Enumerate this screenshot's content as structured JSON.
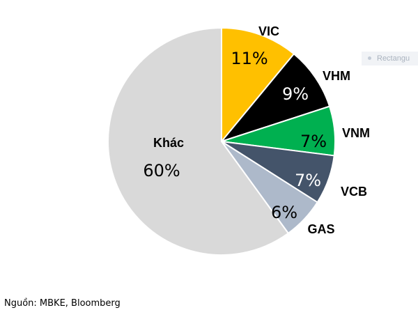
{
  "chart_data": {
    "type": "pie",
    "start_angle_deg": 0,
    "direction": "clockwise",
    "slices": [
      {
        "label": "VIC",
        "value": 11,
        "value_label": "11%",
        "color": "#ffc000",
        "value_text_color": "#000000"
      },
      {
        "label": "VHM",
        "value": 9,
        "value_label": "9%",
        "color": "#000000",
        "value_text_color": "#ffffff"
      },
      {
        "label": "VNM",
        "value": 7,
        "value_label": "7%",
        "color": "#00b050",
        "value_text_color": "#000000"
      },
      {
        "label": "VCB",
        "value": 7,
        "value_label": "7%",
        "color": "#44546a",
        "value_text_color": "#ffffff"
      },
      {
        "label": "GAS",
        "value": 6,
        "value_label": "6%",
        "color": "#adb9ca",
        "value_text_color": "#000000"
      },
      {
        "label": "Khác",
        "value": 60,
        "value_label": "60%",
        "color": "#d9d9d9",
        "value_text_color": "#000000"
      }
    ],
    "border_color": "#ffffff"
  },
  "source_text": "Nguồn: MBKE, Bloomberg",
  "overlay": {
    "label": "Rectangu",
    "icon": "dot-icon"
  }
}
